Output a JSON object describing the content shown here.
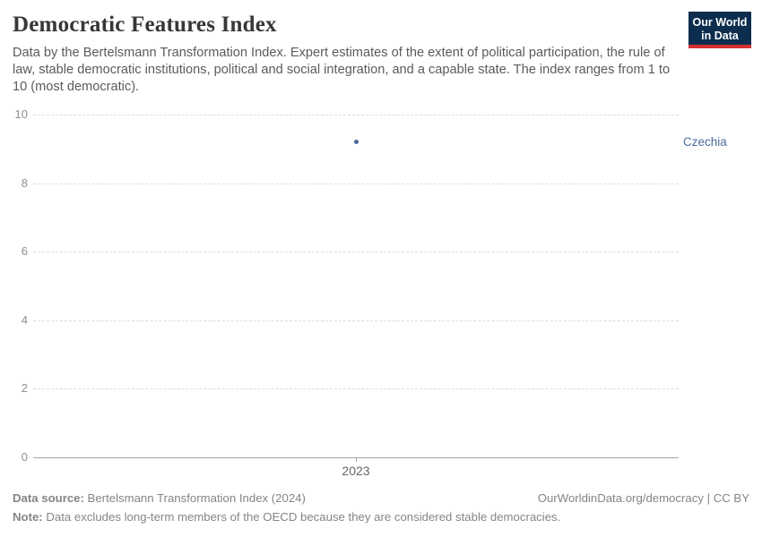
{
  "header": {
    "title": "Democratic Features Index",
    "subtitle": "Data by the Bertelsmann Transformation Index. Expert estimates of the extent of political participation, the rule of law, stable democratic institutions, political and social integration, and a capable state. The index ranges from 1 to 10 (most democratic)."
  },
  "logo": {
    "line1": "Our World",
    "line2": "in Data",
    "bg_color": "#0c2d4e",
    "bar_color": "#d3302f"
  },
  "chart_data": {
    "type": "scatter",
    "title": "Democratic Features Index",
    "x": [
      2023
    ],
    "series": [
      {
        "name": "Czechia",
        "values": [
          9.2
        ],
        "color": "#4c6a9c"
      }
    ],
    "xlabel": "",
    "ylabel": "",
    "ylim": [
      0,
      10
    ],
    "yticks": [
      0,
      2,
      4,
      6,
      8,
      10
    ],
    "xtick_labels": [
      "2023"
    ],
    "grid": "horizontal-dashed",
    "legend": "entity-label-right",
    "entity_label": "Czechia",
    "gridline_color": "#dddddd",
    "axis_line_color": "#a5a5a5"
  },
  "footer": {
    "source_label": "Data source:",
    "source_text": " Bertelsmann Transformation Index (2024)",
    "rights": "OurWorldinData.org/democracy | CC BY",
    "note_label": "Note:",
    "note_text": " Data excludes long-term members of the OECD because they are considered stable democracies."
  }
}
